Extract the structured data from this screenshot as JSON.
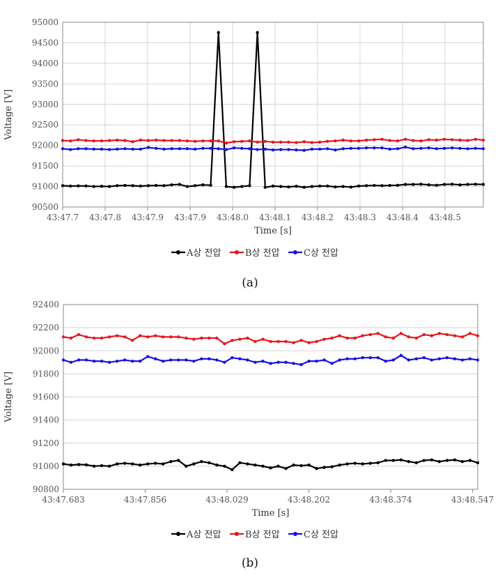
{
  "captions": [
    "(a)",
    "(b)"
  ],
  "colors": {
    "A": "#000000",
    "B": "#e8151c",
    "C": "#1212e6",
    "grid": "#d4d4d4",
    "axis": "#888888",
    "text": "#555555"
  },
  "chart_data": [
    {
      "type": "line",
      "xlabel": "Time [s]",
      "ylabel": "Voltage [V]",
      "ylim": [
        90500,
        95000
      ],
      "yticks": [
        90500,
        91000,
        91500,
        92000,
        92500,
        93000,
        93500,
        94000,
        94500,
        95000
      ],
      "x_tick_labels": [
        "43:47.7",
        "43:47.8",
        "43:47.9",
        "43:47.9",
        "43:48.0",
        "43:48.1",
        "43:48.2",
        "43:48.3",
        "43:48.4",
        "43:48.5"
      ],
      "grid": "vertical-and-horizontal",
      "legend": "bottom",
      "series": [
        {
          "name": "A상 전압",
          "color": "#000000",
          "values": [
            91020,
            91010,
            91015,
            91012,
            91000,
            91005,
            91000,
            91020,
            91025,
            91020,
            91010,
            91020,
            91025,
            91020,
            91040,
            91050,
            91000,
            91020,
            91040,
            91030,
            94750,
            91000,
            90980,
            91000,
            91020,
            94750,
            90980,
            91010,
            91000,
            90990,
            91005,
            90980,
            91000,
            91010,
            91010,
            90990,
            91000,
            90985,
            91010,
            91020,
            91025,
            91020,
            91025,
            91030,
            91050,
            91050,
            91055,
            91040,
            91030,
            91050,
            91055,
            91040,
            91050,
            91055,
            91050
          ]
        },
        {
          "name": "B상 전압",
          "color": "#e8151c",
          "values": [
            92120,
            92110,
            92140,
            92120,
            92110,
            92110,
            92120,
            92130,
            92120,
            92090,
            92130,
            92120,
            92130,
            92120,
            92120,
            92120,
            92110,
            92100,
            92110,
            92110,
            92110,
            92060,
            92090,
            92100,
            92110,
            92080,
            92100,
            92080,
            92080,
            92080,
            92070,
            92090,
            92070,
            92080,
            92100,
            92110,
            92130,
            92110,
            92110,
            92130,
            92140,
            92150,
            92120,
            92110,
            92150,
            92120,
            92110,
            92140,
            92130,
            92150,
            92140,
            92130,
            92120,
            92150,
            92130
          ]
        },
        {
          "name": "C상 전압",
          "color": "#1212e6",
          "values": [
            91920,
            91900,
            91920,
            91920,
            91910,
            91910,
            91900,
            91910,
            91920,
            91910,
            91910,
            91950,
            91930,
            91910,
            91920,
            91920,
            91920,
            91910,
            91930,
            91930,
            91920,
            91900,
            91940,
            91930,
            91920,
            91900,
            91910,
            91890,
            91900,
            91900,
            91890,
            91880,
            91910,
            91910,
            91920,
            91890,
            91920,
            91930,
            91930,
            91940,
            91940,
            91940,
            91910,
            91920,
            91960,
            91920,
            91930,
            91940,
            91920,
            91930,
            91940,
            91930,
            91920,
            91930,
            91920
          ]
        }
      ]
    },
    {
      "type": "line",
      "xlabel": "Time [s]",
      "ylabel": "Voltage [V]",
      "ylim": [
        90800,
        92400
      ],
      "yticks": [
        90800,
        91000,
        91200,
        91400,
        91600,
        91800,
        92000,
        92200,
        92400
      ],
      "x_tick_labels": [
        "43:47.683",
        "43:47.856",
        "43:48.029",
        "43:48.202",
        "43:48.374",
        "43:48.547"
      ],
      "grid": "horizontal",
      "legend": "bottom",
      "series": [
        {
          "name": "A상 전압",
          "color": "#000000",
          "values": [
            91020,
            91010,
            91015,
            91012,
            91000,
            91005,
            91000,
            91020,
            91025,
            91020,
            91010,
            91020,
            91025,
            91020,
            91040,
            91050,
            91000,
            91020,
            91040,
            91030,
            91010,
            91000,
            90970,
            91030,
            91020,
            91010,
            91000,
            90985,
            91000,
            90980,
            91010,
            91005,
            91010,
            90980,
            90990,
            90995,
            91010,
            91020,
            91025,
            91020,
            91025,
            91030,
            91050,
            91050,
            91055,
            91040,
            91030,
            91050,
            91055,
            91040,
            91050,
            91055,
            91040,
            91050,
            91030
          ]
        },
        {
          "name": "B상 전압",
          "color": "#e8151c",
          "values": [
            92120,
            92110,
            92140,
            92120,
            92110,
            92110,
            92120,
            92130,
            92120,
            92090,
            92130,
            92120,
            92130,
            92120,
            92120,
            92120,
            92110,
            92100,
            92110,
            92110,
            92110,
            92060,
            92090,
            92100,
            92110,
            92080,
            92100,
            92080,
            92080,
            92080,
            92070,
            92090,
            92070,
            92080,
            92100,
            92110,
            92130,
            92110,
            92110,
            92130,
            92140,
            92150,
            92120,
            92110,
            92150,
            92120,
            92110,
            92140,
            92130,
            92150,
            92140,
            92130,
            92120,
            92150,
            92130
          ]
        },
        {
          "name": "C상 전압",
          "color": "#1212e6",
          "values": [
            91920,
            91900,
            91920,
            91920,
            91910,
            91910,
            91900,
            91910,
            91920,
            91910,
            91910,
            91950,
            91930,
            91910,
            91920,
            91920,
            91920,
            91910,
            91930,
            91930,
            91920,
            91900,
            91940,
            91930,
            91920,
            91900,
            91910,
            91890,
            91900,
            91900,
            91890,
            91880,
            91910,
            91910,
            91920,
            91890,
            91920,
            91930,
            91930,
            91940,
            91940,
            91940,
            91910,
            91920,
            91960,
            91920,
            91930,
            91940,
            91920,
            91930,
            91940,
            91930,
            91920,
            91930,
            91920
          ]
        }
      ]
    }
  ]
}
